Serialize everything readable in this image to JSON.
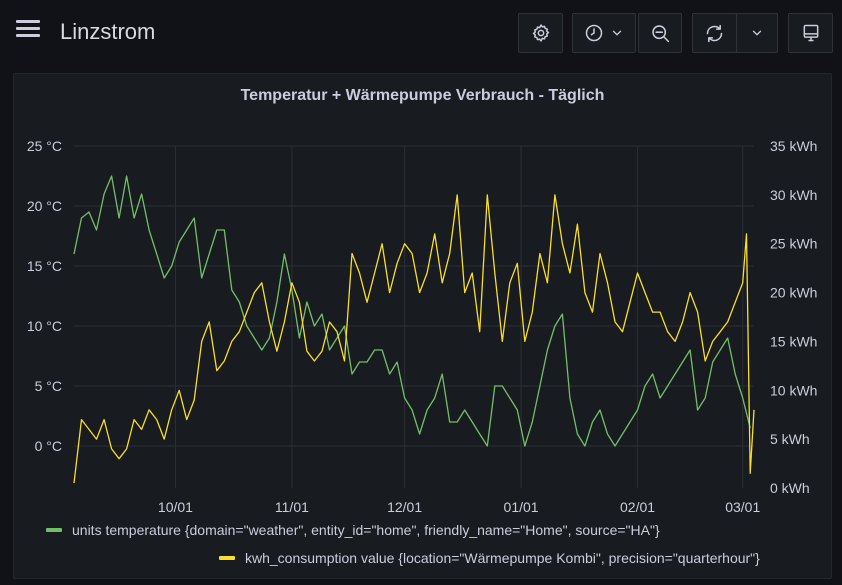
{
  "app": {
    "title": "Linzstrom"
  },
  "toolbar": {
    "settings_icon": "gear-icon",
    "time_icon": "clock-icon",
    "zoom_out_icon": "zoom-out-icon",
    "refresh_icon": "refresh-icon",
    "kiosk_icon": "monitor-icon"
  },
  "panel": {
    "title": "Temperatur + Wärmepumpe Verbrauch - Täglich"
  },
  "colors": {
    "temperature": "#73bf69",
    "consumption": "#fade2a",
    "grid": "#2c2f35",
    "text": "#ccccdc"
  },
  "chart_data": {
    "type": "line",
    "title": "Temperatur + Wärmepumpe Verbrauch - Täglich",
    "x_ticks": [
      "10/01",
      "11/01",
      "12/01",
      "01/01",
      "02/01",
      "03/01"
    ],
    "y_left": {
      "ticks": [
        "25 °C",
        "20 °C",
        "15 °C",
        "10 °C",
        "5 °C",
        "0 °C"
      ],
      "tick_values": [
        25,
        20,
        15,
        10,
        5,
        0
      ],
      "range": [
        -3.5,
        25
      ]
    },
    "y_right": {
      "ticks": [
        "35 kWh",
        "30 kWh",
        "25 kWh",
        "20 kWh",
        "15 kWh",
        "10 kWh",
        "5 kWh",
        "0 kWh"
      ],
      "tick_values": [
        35,
        30,
        25,
        20,
        15,
        10,
        5,
        0
      ],
      "range": [
        0,
        35
      ]
    },
    "grid": true,
    "legend_placement": "bottom-center",
    "x_range": [
      "2020-09-04",
      "2021-03-04"
    ],
    "series": [
      {
        "name": "units temperature {domain=\"weather\", entity_id=\"home\", friendly_name=\"Home\", source=\"HA\"}",
        "axis": "left",
        "x": [
          "2020-09-04",
          "2020-09-06",
          "2020-09-08",
          "2020-09-10",
          "2020-09-12",
          "2020-09-14",
          "2020-09-16",
          "2020-09-18",
          "2020-09-20",
          "2020-09-22",
          "2020-09-24",
          "2020-09-26",
          "2020-09-28",
          "2020-09-30",
          "2020-10-02",
          "2020-10-04",
          "2020-10-06",
          "2020-10-08",
          "2020-10-10",
          "2020-10-12",
          "2020-10-14",
          "2020-10-16",
          "2020-10-18",
          "2020-10-20",
          "2020-10-22",
          "2020-10-24",
          "2020-10-26",
          "2020-10-28",
          "2020-10-30",
          "2020-11-01",
          "2020-11-03",
          "2020-11-05",
          "2020-11-07",
          "2020-11-09",
          "2020-11-11",
          "2020-11-13",
          "2020-11-15",
          "2020-11-17",
          "2020-11-19",
          "2020-11-21",
          "2020-11-23",
          "2020-11-25",
          "2020-11-27",
          "2020-11-29",
          "2020-12-01",
          "2020-12-03",
          "2020-12-05",
          "2020-12-07",
          "2020-12-09",
          "2020-12-11",
          "2020-12-13",
          "2020-12-15",
          "2020-12-17",
          "2020-12-19",
          "2020-12-21",
          "2020-12-23",
          "2020-12-25",
          "2020-12-27",
          "2020-12-29",
          "2020-12-31",
          "2021-01-02",
          "2021-01-04",
          "2021-01-06",
          "2021-01-08",
          "2021-01-10",
          "2021-01-12",
          "2021-01-14",
          "2021-01-16",
          "2021-01-18",
          "2021-01-20",
          "2021-01-22",
          "2021-01-24",
          "2021-01-26",
          "2021-01-28",
          "2021-01-30",
          "2021-02-01",
          "2021-02-03",
          "2021-02-05",
          "2021-02-07",
          "2021-02-09",
          "2021-02-11",
          "2021-02-13",
          "2021-02-15",
          "2021-02-17",
          "2021-02-19",
          "2021-02-21",
          "2021-02-23",
          "2021-02-25",
          "2021-02-27",
          "2021-03-01",
          "2021-03-03"
        ],
        "values": [
          16,
          19,
          19.5,
          18,
          21,
          22.5,
          19,
          22.5,
          19,
          21,
          18,
          16,
          14,
          15,
          17,
          18,
          19,
          14,
          16,
          18,
          18,
          13,
          12,
          10,
          9,
          8,
          9,
          12,
          16,
          13,
          9,
          12,
          10,
          11,
          8,
          9,
          10,
          6,
          7,
          7,
          8,
          8,
          6,
          7,
          4,
          3,
          1,
          3,
          4,
          6,
          2,
          2,
          3,
          2,
          1,
          0,
          5,
          5,
          4,
          3,
          0,
          2,
          5,
          8,
          10,
          11,
          4,
          1,
          0,
          2,
          3,
          1,
          0,
          1,
          2,
          3,
          5,
          6,
          4,
          5,
          6,
          7,
          8,
          3,
          4,
          7,
          8,
          9,
          6,
          4,
          1.5
        ]
      },
      {
        "name": "kwh_consumption value {location=\"Wärmepumpe Kombi\", precision=\"quarterhour\"}",
        "axis": "right",
        "x": [
          "2020-09-04",
          "2020-09-06",
          "2020-09-08",
          "2020-09-10",
          "2020-09-12",
          "2020-09-14",
          "2020-09-16",
          "2020-09-18",
          "2020-09-20",
          "2020-09-22",
          "2020-09-24",
          "2020-09-26",
          "2020-09-28",
          "2020-09-30",
          "2020-10-02",
          "2020-10-04",
          "2020-10-06",
          "2020-10-08",
          "2020-10-10",
          "2020-10-12",
          "2020-10-14",
          "2020-10-16",
          "2020-10-18",
          "2020-10-20",
          "2020-10-22",
          "2020-10-24",
          "2020-10-26",
          "2020-10-28",
          "2020-10-30",
          "2020-11-01",
          "2020-11-03",
          "2020-11-05",
          "2020-11-07",
          "2020-11-09",
          "2020-11-11",
          "2020-11-13",
          "2020-11-15",
          "2020-11-17",
          "2020-11-19",
          "2020-11-21",
          "2020-11-23",
          "2020-11-25",
          "2020-11-27",
          "2020-11-29",
          "2020-12-01",
          "2020-12-03",
          "2020-12-05",
          "2020-12-07",
          "2020-12-09",
          "2020-12-11",
          "2020-12-13",
          "2020-12-15",
          "2020-12-17",
          "2020-12-19",
          "2020-12-21",
          "2020-12-23",
          "2020-12-25",
          "2020-12-27",
          "2020-12-29",
          "2020-12-31",
          "2021-01-02",
          "2021-01-04",
          "2021-01-06",
          "2021-01-08",
          "2021-01-10",
          "2021-01-12",
          "2021-01-14",
          "2021-01-16",
          "2021-01-18",
          "2021-01-20",
          "2021-01-22",
          "2021-01-24",
          "2021-01-26",
          "2021-01-28",
          "2021-01-30",
          "2021-02-01",
          "2021-02-03",
          "2021-02-05",
          "2021-02-07",
          "2021-02-09",
          "2021-02-11",
          "2021-02-13",
          "2021-02-15",
          "2021-02-17",
          "2021-02-19",
          "2021-02-21",
          "2021-02-23",
          "2021-02-25",
          "2021-02-27",
          "2021-03-01",
          "2021-03-02",
          "2021-03-03",
          "2021-03-04"
        ],
        "values": [
          0.5,
          7,
          6,
          5,
          7,
          4,
          3,
          4,
          7,
          6,
          8,
          7,
          5,
          8,
          10,
          7,
          9,
          15,
          17,
          12,
          13,
          15,
          16,
          18,
          20,
          21,
          17,
          14,
          17,
          21,
          19,
          14,
          13,
          14,
          17,
          16,
          13,
          24,
          22,
          19,
          22,
          25,
          20,
          23,
          25,
          24,
          20,
          22,
          26,
          21,
          24,
          30,
          20,
          22,
          16,
          30,
          22,
          15,
          21,
          23,
          15,
          18,
          24,
          21,
          30,
          25,
          22,
          27,
          20,
          18,
          24,
          21,
          17,
          16,
          19,
          22,
          20,
          18,
          18,
          16,
          15,
          17,
          20,
          18,
          13,
          15,
          16,
          17,
          19,
          21,
          26,
          1.5,
          8
        ]
      }
    ]
  }
}
